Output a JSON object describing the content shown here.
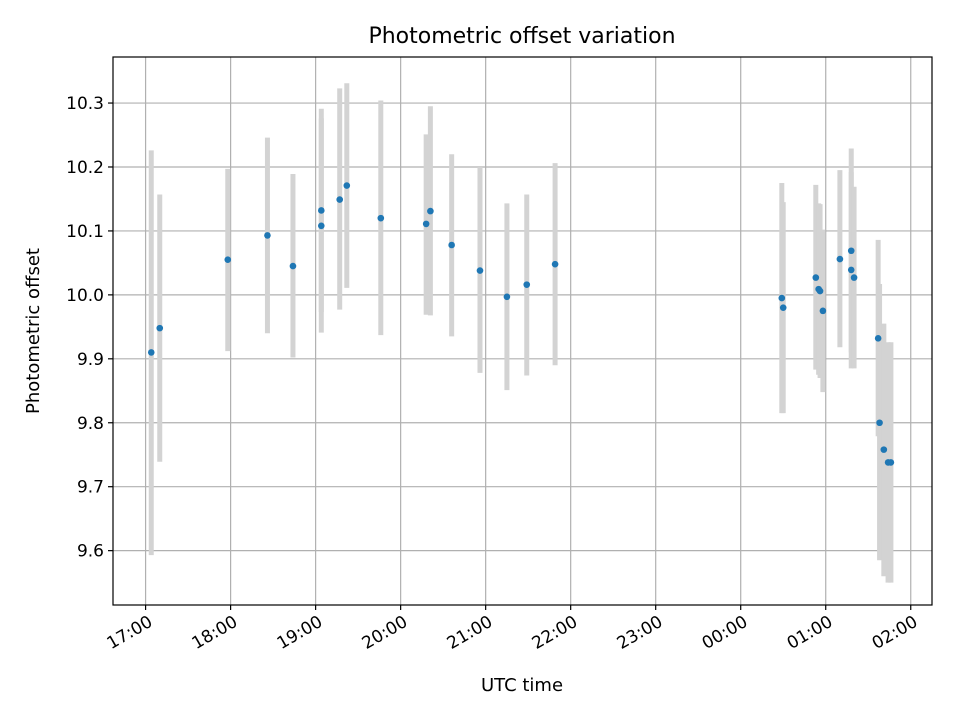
{
  "chart_data": {
    "type": "scatter",
    "title": "Photometric offset variation",
    "xlabel": "UTC time",
    "ylabel": "Photometric offset",
    "x_ticks": [
      "17:00",
      "18:00",
      "19:00",
      "20:00",
      "21:00",
      "22:00",
      "23:00",
      "00:00",
      "01:00",
      "02:00"
    ],
    "y_ticks": [
      "9.6",
      "9.7",
      "9.8",
      "9.9",
      "10.0",
      "10.1",
      "10.2",
      "10.3"
    ],
    "xlim": [
      "16:37",
      "02:15"
    ],
    "ylim": [
      9.515,
      10.372
    ],
    "grid": true,
    "marker_color": "#1f77b4",
    "errorbar_color": "#d3d3d3",
    "points": [
      {
        "x": "17:04",
        "y": 9.91,
        "low": 9.593,
        "high": 10.226
      },
      {
        "x": "17:10",
        "y": 9.948,
        "low": 9.739,
        "high": 10.157
      },
      {
        "x": "17:58",
        "y": 10.055,
        "low": 9.912,
        "high": 10.197
      },
      {
        "x": "18:26",
        "y": 10.093,
        "low": 9.94,
        "high": 10.246
      },
      {
        "x": "18:44",
        "y": 10.045,
        "low": 9.902,
        "high": 10.189
      },
      {
        "x": "19:04",
        "y": 10.132,
        "low": 9.973,
        "high": 10.291
      },
      {
        "x": "19:04",
        "y": 10.108,
        "low": 9.941,
        "high": 10.276
      },
      {
        "x": "19:17",
        "y": 10.149,
        "low": 9.977,
        "high": 10.323
      },
      {
        "x": "19:22",
        "y": 10.171,
        "low": 10.011,
        "high": 10.331
      },
      {
        "x": "19:46",
        "y": 10.12,
        "low": 9.937,
        "high": 10.304
      },
      {
        "x": "20:18",
        "y": 10.111,
        "low": 9.969,
        "high": 10.251
      },
      {
        "x": "20:21",
        "y": 10.131,
        "low": 9.968,
        "high": 10.295
      },
      {
        "x": "20:36",
        "y": 10.078,
        "low": 9.935,
        "high": 10.22
      },
      {
        "x": "20:56",
        "y": 10.038,
        "low": 9.878,
        "high": 10.2
      },
      {
        "x": "21:15",
        "y": 9.997,
        "low": 9.851,
        "high": 10.143
      },
      {
        "x": "21:29",
        "y": 10.016,
        "low": 9.874,
        "high": 10.157
      },
      {
        "x": "21:49",
        "y": 10.048,
        "low": 9.89,
        "high": 10.206
      },
      {
        "x": "00:29",
        "y": 9.995,
        "low": 9.815,
        "high": 10.175
      },
      {
        "x": "00:30",
        "y": 9.98,
        "low": 9.815,
        "high": 10.145
      },
      {
        "x": "00:53",
        "y": 10.027,
        "low": 9.883,
        "high": 10.172
      },
      {
        "x": "00:55",
        "y": 10.009,
        "low": 9.875,
        "high": 10.143
      },
      {
        "x": "00:56",
        "y": 10.006,
        "low": 9.87,
        "high": 10.142
      },
      {
        "x": "00:58",
        "y": 9.975,
        "low": 9.848,
        "high": 10.102
      },
      {
        "x": "01:10",
        "y": 10.056,
        "low": 9.918,
        "high": 10.195
      },
      {
        "x": "01:18",
        "y": 10.069,
        "low": 9.91,
        "high": 10.229
      },
      {
        "x": "01:18",
        "y": 10.039,
        "low": 9.885,
        "high": 10.192
      },
      {
        "x": "01:20",
        "y": 10.027,
        "low": 9.885,
        "high": 10.169
      },
      {
        "x": "01:37",
        "y": 9.932,
        "low": 9.779,
        "high": 10.086
      },
      {
        "x": "01:38",
        "y": 9.8,
        "low": 9.585,
        "high": 10.017
      },
      {
        "x": "01:41",
        "y": 9.758,
        "low": 9.56,
        "high": 9.955
      },
      {
        "x": "01:44",
        "y": 9.738,
        "low": 9.55,
        "high": 9.926
      },
      {
        "x": "01:46",
        "y": 9.738,
        "low": 9.55,
        "high": 9.926
      }
    ]
  }
}
